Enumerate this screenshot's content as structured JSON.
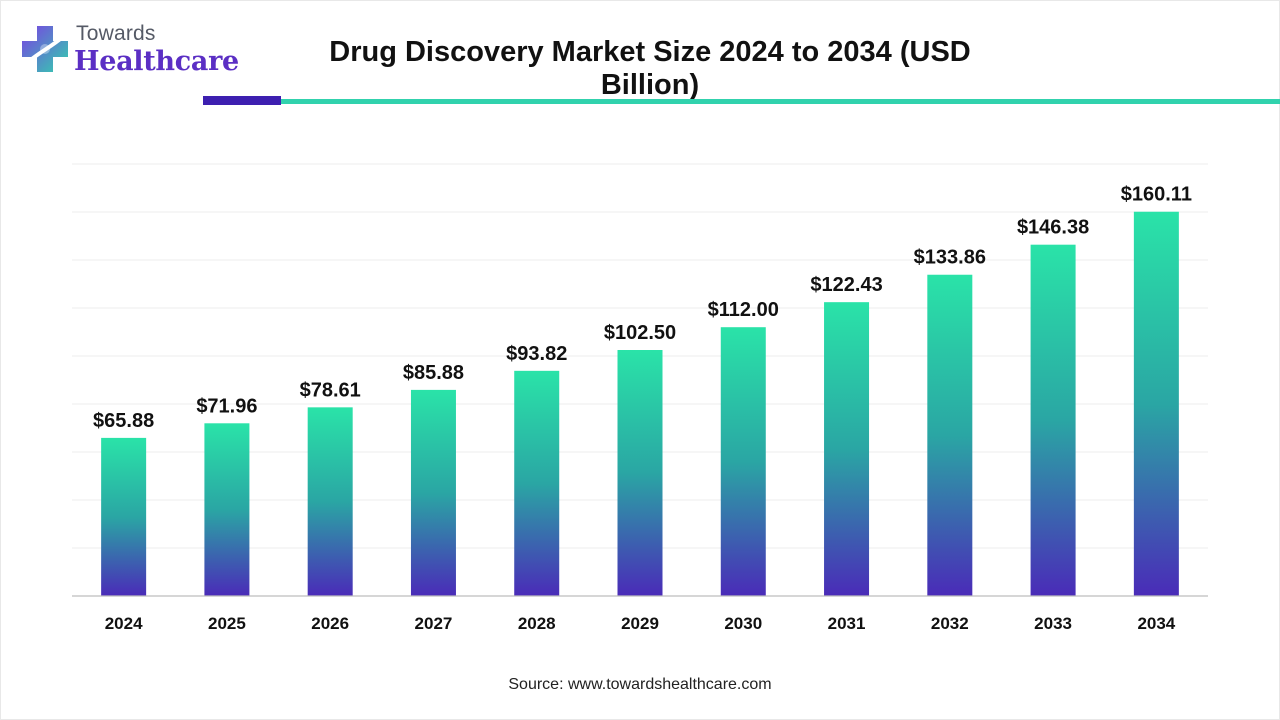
{
  "logo": {
    "top_text": "Towards",
    "main_text": "Healthcare",
    "icon": "medical-cross-icon"
  },
  "colors": {
    "bar_top": "#2ae3a8",
    "bar_bottom": "#4a2bb8",
    "accent_dark": "#3d1fb0",
    "accent_teal": "#31d2ad",
    "logo_purple": "#5b2fc4"
  },
  "source_text": "Source: www.towardshealthcare.com",
  "chart_data": {
    "type": "bar",
    "title": "Drug Discovery Market Size 2024 to 2034 (USD Billion)",
    "xlabel": "",
    "ylabel": "",
    "categories": [
      "2024",
      "2025",
      "2026",
      "2027",
      "2028",
      "2029",
      "2030",
      "2031",
      "2032",
      "2033",
      "2034"
    ],
    "values": [
      65.88,
      71.96,
      78.61,
      85.88,
      93.82,
      102.5,
      112.0,
      122.43,
      133.86,
      146.38,
      160.11
    ],
    "value_labels": [
      "$65.88",
      "$71.96",
      "$78.61",
      "$85.88",
      "$93.82",
      "$102.50",
      "$112.00",
      "$122.43",
      "$133.86",
      "$146.38",
      "$160.11"
    ],
    "ylim": [
      0,
      180
    ],
    "grid": true,
    "legend": "none"
  }
}
